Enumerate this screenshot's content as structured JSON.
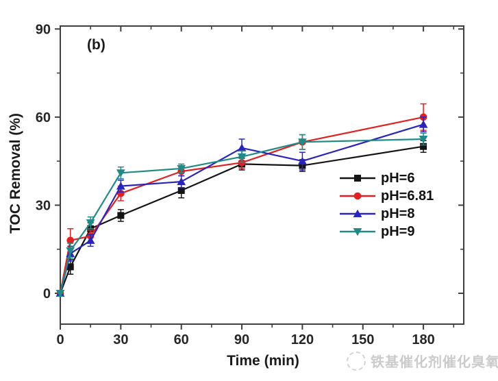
{
  "figure": {
    "panel_label": "(b)",
    "background": "#ffffff",
    "axis_color": "#3f3f3f",
    "tick_label_color": "#262626"
  },
  "chart_data": {
    "type": "line",
    "title": "",
    "xlabel": "Time (min)",
    "ylabel": "TOC Removal (%)",
    "xlim": [
      0,
      200
    ],
    "ylim": [
      -10.5,
      91
    ],
    "xticks": [
      0,
      30,
      60,
      90,
      120,
      150,
      180
    ],
    "xminorticks": [
      15,
      45,
      75,
      105,
      135,
      165,
      195
    ],
    "yticks": [
      0,
      30,
      60,
      90
    ],
    "yminorticks": [
      15,
      45,
      75
    ],
    "grid": false,
    "legend_position": "center-right",
    "x": [
      0,
      5,
      15,
      30,
      60,
      90,
      120,
      180
    ],
    "series": [
      {
        "name": "pH=6",
        "color": "#141414",
        "marker": "square",
        "values": [
          0,
          9,
          22,
          26.5,
          35,
          44,
          43.5,
          50
        ],
        "errors": [
          0.5,
          2.5,
          2,
          2,
          2.5,
          2,
          2,
          2
        ]
      },
      {
        "name": "pH=6.81",
        "color": "#e41f1f",
        "marker": "circle",
        "values": [
          0,
          18,
          19.5,
          34,
          41.5,
          44.5,
          51.5,
          60
        ],
        "errors": [
          0.5,
          4,
          2,
          2.5,
          1.5,
          2,
          2.5,
          4.5
        ]
      },
      {
        "name": "pH=8",
        "color": "#2a24bf",
        "marker": "triangle-up",
        "values": [
          0,
          13.5,
          18,
          36.5,
          38,
          49.5,
          45,
          57.5
        ],
        "errors": [
          0.5,
          2.5,
          2,
          2,
          2,
          3,
          3,
          2.5
        ]
      },
      {
        "name": "pH=9",
        "color": "#1f8b87",
        "marker": "triangle-down",
        "values": [
          0,
          14.5,
          24,
          41,
          42.5,
          46.5,
          51.5,
          52.5
        ],
        "errors": [
          1,
          2.5,
          2,
          2,
          1.5,
          2,
          2.5,
          2
        ]
      }
    ]
  },
  "watermark": {
    "text": "铁基催化剂催化臭氧",
    "logo": "circular-seal-logo"
  }
}
